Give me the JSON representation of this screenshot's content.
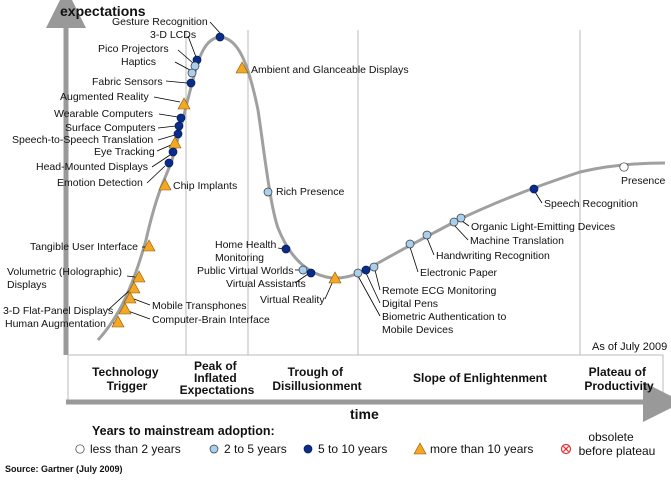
{
  "header": {
    "y_axis_label": "expectations",
    "x_axis_label": "time",
    "as_of": "As of July 2009",
    "source": "Source: Gartner (July 2009)"
  },
  "phases": [
    "Technology Trigger",
    "Peak of Inflated Expectations",
    "Trough of Disillusionment",
    "Slope of Enlightenment",
    "Plateau of Productivity"
  ],
  "legend": {
    "title": "Years to mainstream adoption:",
    "items": [
      {
        "marker": "less than 2 years",
        "label": "less than 2 years"
      },
      {
        "marker": "2 to 5 years",
        "label": "2 to 5 years"
      },
      {
        "marker": "5 to 10 years",
        "label": "5 to 10 years"
      },
      {
        "marker": "more than 10 years",
        "label": "more than 10 years"
      },
      {
        "marker": "obsolete",
        "label": "obsolete before plateau"
      }
    ]
  },
  "colors": {
    "curve": "#a0a0a0",
    "lt2": "#ffffff",
    "y2to5": "#a9cfee",
    "y5to10": "#0a2c8a",
    "gt10": "#f5a623",
    "obsolete": "#e03030",
    "leader": "#000000",
    "panel": "#ffffff"
  },
  "technologies": [
    {
      "label": "Gesture Recognition",
      "adoption": "5 to 10 years"
    },
    {
      "label": "3-D LCDs",
      "adoption": "5 to 10 years"
    },
    {
      "label": "Pico Projectors",
      "adoption": "2 to 5 years"
    },
    {
      "label": "Haptics",
      "adoption": "2 to 5 years"
    },
    {
      "label": "Fabric Sensors",
      "adoption": "5 to 10 years"
    },
    {
      "label": "Augmented Reality",
      "adoption": "more than 10 years"
    },
    {
      "label": "Wearable Computers",
      "adoption": "5 to 10 years"
    },
    {
      "label": "Surface Computers",
      "adoption": "5 to 10 years"
    },
    {
      "label": "Speech-to-Speech Translation",
      "adoption": "5 to 10 years"
    },
    {
      "label": "Eye Tracking",
      "adoption": "more than 10 years"
    },
    {
      "label": "Head-Mounted Displays",
      "adoption": "5 to 10 years"
    },
    {
      "label": "Emotion Detection",
      "adoption": "5 to 10 years"
    },
    {
      "label": "Chip Implants",
      "adoption": "more than 10 years"
    },
    {
      "label": "Tangible User Interface",
      "adoption": "more than 10 years"
    },
    {
      "label": "Volumetric (Holographic) Displays",
      "adoption": "more than 10 years"
    },
    {
      "label": "3-D Flat-Panel Displays",
      "adoption": "more than 10 years"
    },
    {
      "label": "Human Augmentation",
      "adoption": "more than 10 years"
    },
    {
      "label": "Mobile Transphones",
      "adoption": "more than 10 years"
    },
    {
      "label": "Computer-Brain Interface",
      "adoption": "more than 10 years"
    },
    {
      "label": "Ambient and Glanceable Displays",
      "adoption": "more than 10 years"
    },
    {
      "label": "Rich Presence",
      "adoption": "2 to 5 years"
    },
    {
      "label": "Home Health Monitoring",
      "adoption": "5 to 10 years"
    },
    {
      "label": "Public Virtual Worlds",
      "adoption": "2 to 5 years"
    },
    {
      "label": "Virtual Assistants",
      "adoption": "5 to 10 years"
    },
    {
      "label": "Virtual Reality",
      "adoption": "more than 10 years"
    },
    {
      "label": "Remote ECG Monitoring",
      "adoption": "2 to 5 years"
    },
    {
      "label": "Digital Pens",
      "adoption": "5 to 10 years"
    },
    {
      "label": "Biometric Authentication to Mobile Devices",
      "adoption": "2 to 5 years"
    },
    {
      "label": "Electronic Paper",
      "adoption": "2 to 5 years"
    },
    {
      "label": "Handwriting Recognition",
      "adoption": "2 to 5 years"
    },
    {
      "label": "Machine Translation",
      "adoption": "2 to 5 years"
    },
    {
      "label": "Organic Light-Emitting Devices",
      "adoption": "2 to 5 years"
    },
    {
      "label": "Speech Recognition",
      "adoption": "5 to 10 years"
    },
    {
      "label": "Presence",
      "adoption": "less than 2 years"
    }
  ]
}
